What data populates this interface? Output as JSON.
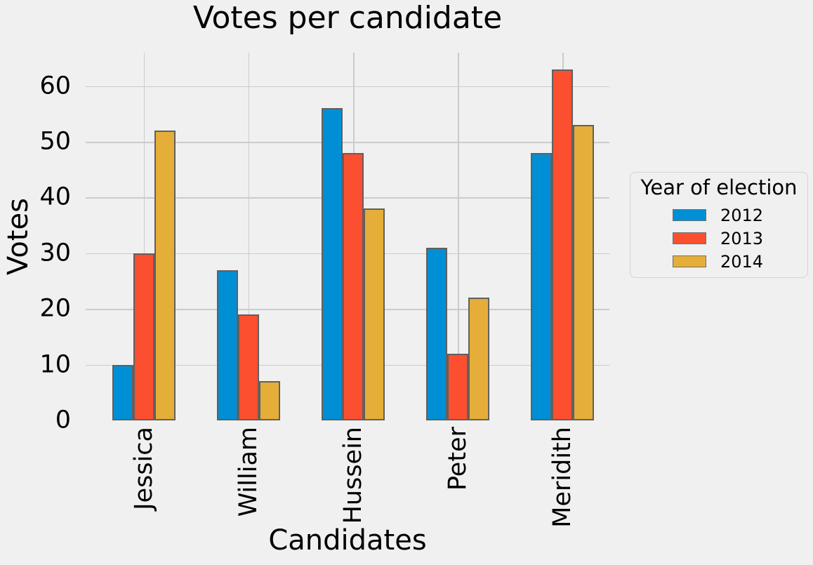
{
  "title": "Votes per candidate",
  "x_axis_label": "Candidates",
  "y_axis_label": "Votes",
  "legend": {
    "title": "Year of election",
    "entries": [
      {
        "label": "2012",
        "color": "#008fd5"
      },
      {
        "label": "2013",
        "color": "#fc4f30"
      },
      {
        "label": "2014",
        "color": "#e5ae38"
      }
    ]
  },
  "colors": {
    "background": "#f0f0f0",
    "grid": "#cbcbcb",
    "bar_edge": "#606060",
    "text": "#000000",
    "series_2012": "#008fd5",
    "series_2013": "#fc4f30",
    "series_2014": "#e5ae38"
  },
  "chart_data": {
    "type": "bar",
    "title": "Votes per candidate",
    "xlabel": "Candidates",
    "ylabel": "Votes",
    "categories": [
      "Jessica",
      "William",
      "Hussein",
      "Peter",
      "Meridith"
    ],
    "series": [
      {
        "name": "2012",
        "color": "#008fd5",
        "values": [
          10,
          27,
          56,
          31,
          48
        ]
      },
      {
        "name": "2013",
        "color": "#fc4f30",
        "values": [
          30,
          19,
          48,
          12,
          63
        ]
      },
      {
        "name": "2014",
        "color": "#e5ae38",
        "values": [
          52,
          7,
          38,
          22,
          53
        ]
      }
    ],
    "yticks": [
      0,
      10,
      20,
      30,
      40,
      50,
      60
    ],
    "ylim": [
      0,
      66
    ],
    "grid": true,
    "legend_title": "Year of election",
    "legend_position": "center right",
    "xtick_rotation": 90
  }
}
